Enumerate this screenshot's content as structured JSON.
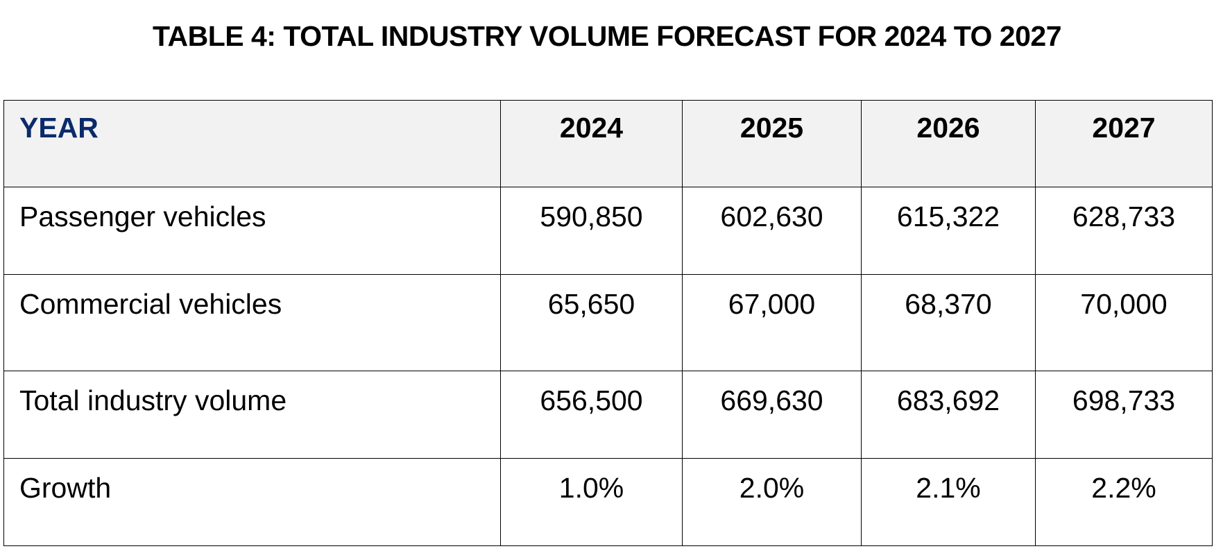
{
  "title": "TABLE 4: TOTAL INDUSTRY VOLUME FORECAST FOR 2024 TO 2027",
  "table": {
    "header_label": "YEAR",
    "header_label_color": "#0b2a6b",
    "header_background": "#f2f2f2",
    "years": [
      "2024",
      "2025",
      "2026",
      "2027"
    ],
    "rows": [
      {
        "label": "Passenger vehicles",
        "values": [
          "590,850",
          "602,630",
          "615,322",
          "628,733"
        ]
      },
      {
        "label": "Commercial vehicles",
        "values": [
          "65,650",
          "67,000",
          "68,370",
          "70,000"
        ]
      },
      {
        "label": "Total industry volume",
        "values": [
          "656,500",
          "669,630",
          "683,692",
          "698,733"
        ]
      },
      {
        "label": "Growth",
        "values": [
          "1.0%",
          "2.0%",
          "2.1%",
          "2.2%"
        ]
      }
    ]
  }
}
